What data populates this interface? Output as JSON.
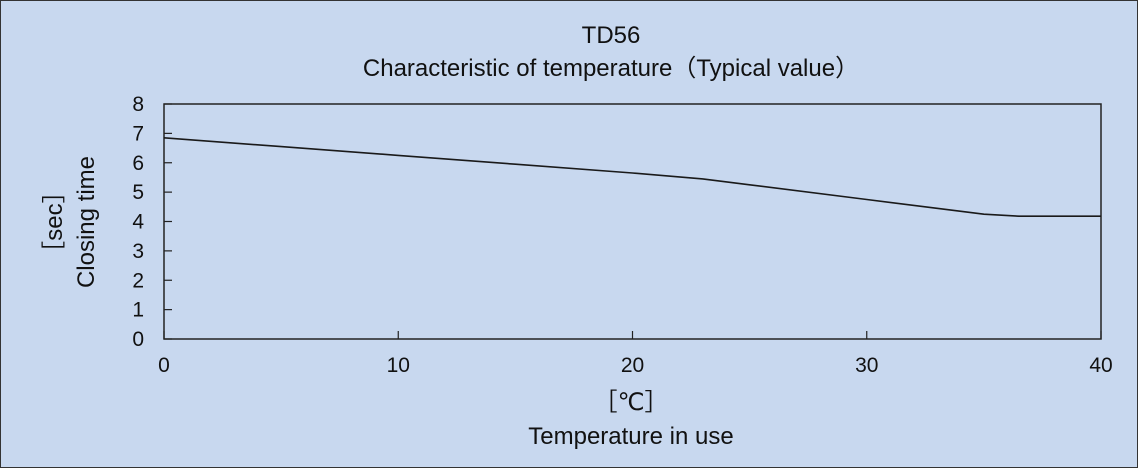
{
  "chart_data": {
    "type": "line",
    "title": "TD56",
    "subtitle": "Characteristic of temperature（Typical value）",
    "xlabel_unit": "［℃］",
    "xlabel": "Temperature in use",
    "ylabel_unit": "［sec］",
    "ylabel": "Closing time",
    "xlim": [
      0,
      40
    ],
    "ylim": [
      0,
      8
    ],
    "xticks": [
      0,
      10,
      20,
      30,
      40
    ],
    "yticks": [
      0,
      1,
      2,
      3,
      4,
      5,
      6,
      7,
      8
    ],
    "grid": false,
    "series": [
      {
        "color": "#1a1a1a",
        "x": [
          0,
          5,
          10,
          15,
          20,
          23,
          25,
          30,
          33,
          35,
          36.5,
          37,
          40
        ],
        "y": [
          6.85,
          6.55,
          6.25,
          5.95,
          5.65,
          5.45,
          5.25,
          4.75,
          4.45,
          4.25,
          4.18,
          4.18,
          4.18
        ]
      }
    ]
  }
}
